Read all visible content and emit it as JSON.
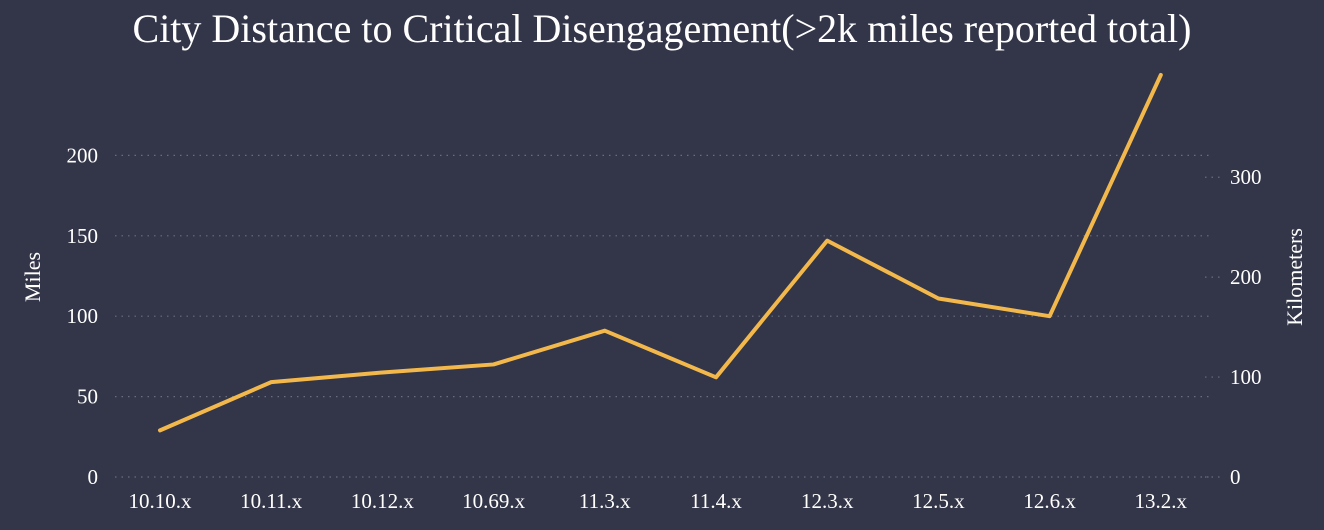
{
  "chart_data": {
    "type": "line",
    "title": "City Distance to Critical Disengagement(>2k miles reported total)",
    "categories": [
      "10.10.x",
      "10.11.x",
      "10.12.x",
      "10.69.x",
      "11.3.x",
      "11.4.x",
      "12.3.x",
      "12.5.x",
      "12.6.x",
      "13.2.x"
    ],
    "series": [
      {
        "values": [
          29,
          59,
          65,
          70,
          91,
          62,
          147,
          111,
          100,
          250
        ],
        "color": "#f2b84b"
      }
    ],
    "ylabel": "Miles",
    "ylim": [
      0,
      250
    ],
    "yticks": [
      0,
      50,
      100,
      150,
      200
    ],
    "y2label": "Kilometers",
    "y2lim": [
      0,
      402.3
    ],
    "y2ticks": [
      0,
      100,
      200,
      300
    ],
    "grid": true,
    "background": "#333548",
    "text_color": "#ffffff"
  }
}
